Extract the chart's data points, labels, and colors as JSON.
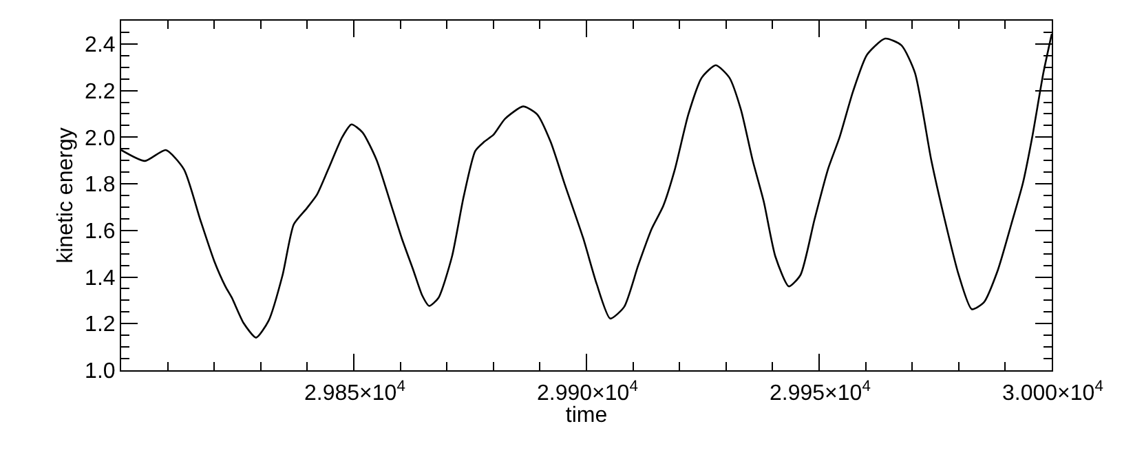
{
  "chart_data": {
    "type": "line",
    "xlabel": "time",
    "ylabel": "kinetic energy",
    "x": [
      29800,
      29805.1,
      29809.6,
      29813.5,
      29817,
      29820,
      29822.4,
      29823.8,
      29826.3,
      29829,
      29831.7,
      29834.7,
      29837.1,
      29839.9,
      29842.1,
      29844.5,
      29847.5,
      29849.5,
      29851.9,
      29854.9,
      29857.8,
      29860.3,
      29862.8,
      29864.7,
      29866.2,
      29868.2,
      29871.1,
      29873.6,
      29876.1,
      29878,
      29880,
      29882.5,
      29886.4,
      29889.4,
      29892.3,
      29895.3,
      29899.3,
      29902.2,
      29905.1,
      29908.1,
      29911.1,
      29914,
      29916.5,
      29919,
      29921.9,
      29924.8,
      29927.8,
      29930.7,
      29933.2,
      29935.7,
      29938.1,
      29940.6,
      29943.5,
      29946,
      29949,
      29951.9,
      29954.4,
      29957.3,
      29960.3,
      29964.2,
      29967.7,
      29970.6,
      29974.1,
      29977,
      29980,
      29982.8,
      29985.4,
      29988.4,
      29991.3,
      29993.8,
      29995.8,
      29998.2,
      30000
    ],
    "series": [
      {
        "color": "#000000",
        "values": [
          1.945,
          1.898,
          1.945,
          1.862,
          1.646,
          1.469,
          1.36,
          1.311,
          1.203,
          1.14,
          1.213,
          1.409,
          1.626,
          1.695,
          1.754,
          1.862,
          2.0,
          2.055,
          2.02,
          1.902,
          1.724,
          1.567,
          1.429,
          1.321,
          1.276,
          1.311,
          1.488,
          1.744,
          1.941,
          1.98,
          2.01,
          2.079,
          2.132,
          2.098,
          1.98,
          1.8,
          1.567,
          1.37,
          1.222,
          1.272,
          1.449,
          1.606,
          1.705,
          1.862,
          2.098,
          2.256,
          2.309,
          2.256,
          2.118,
          1.902,
          1.724,
          1.488,
          1.36,
          1.409,
          1.646,
          1.862,
          2.0,
          2.197,
          2.354,
          2.423,
          2.394,
          2.276,
          1.902,
          1.646,
          1.409,
          1.262,
          1.291,
          1.429,
          1.626,
          1.803,
          2.0,
          2.276,
          2.443
        ]
      }
    ],
    "xlim": [
      29800,
      30000
    ],
    "xticks": [
      {
        "value": 29810,
        "label": null
      },
      {
        "value": 29820,
        "label": null
      },
      {
        "value": 29830,
        "label": null
      },
      {
        "value": 29840,
        "label": null
      },
      {
        "value": 29850,
        "label": "2.985×10$^{4}$"
      },
      {
        "value": 29860,
        "label": null
      },
      {
        "value": 29870,
        "label": null
      },
      {
        "value": 29880,
        "label": null
      },
      {
        "value": 29890,
        "label": null
      },
      {
        "value": 29900,
        "label": "2.990×10$^{4}$"
      },
      {
        "value": 29910,
        "label": null
      },
      {
        "value": 29920,
        "label": null
      },
      {
        "value": 29930,
        "label": null
      },
      {
        "value": 29940,
        "label": null
      },
      {
        "value": 29950,
        "label": "2.995×10$^{4}$"
      },
      {
        "value": 29960,
        "label": null
      },
      {
        "value": 29970,
        "label": null
      },
      {
        "value": 29980,
        "label": null
      },
      {
        "value": 29990,
        "label": null
      },
      {
        "value": 30000,
        "label": "3.000×10$^{4}$"
      }
    ],
    "ylim": [
      1.0,
      2.5
    ],
    "yticks": [
      {
        "value": 1.0,
        "label": "1.0"
      },
      {
        "value": 1.05,
        "label": null
      },
      {
        "value": 1.1,
        "label": null
      },
      {
        "value": 1.15,
        "label": null
      },
      {
        "value": 1.2,
        "label": "1.2"
      },
      {
        "value": 1.25,
        "label": null
      },
      {
        "value": 1.3,
        "label": null
      },
      {
        "value": 1.35,
        "label": null
      },
      {
        "value": 1.4,
        "label": "1.4"
      },
      {
        "value": 1.45,
        "label": null
      },
      {
        "value": 1.5,
        "label": null
      },
      {
        "value": 1.55,
        "label": null
      },
      {
        "value": 1.6,
        "label": "1.6"
      },
      {
        "value": 1.65,
        "label": null
      },
      {
        "value": 1.7,
        "label": null
      },
      {
        "value": 1.75,
        "label": null
      },
      {
        "value": 1.8,
        "label": "1.8"
      },
      {
        "value": 1.85,
        "label": null
      },
      {
        "value": 1.9,
        "label": null
      },
      {
        "value": 1.95,
        "label": null
      },
      {
        "value": 2.0,
        "label": "2.0"
      },
      {
        "value": 2.05,
        "label": null
      },
      {
        "value": 2.1,
        "label": null
      },
      {
        "value": 2.15,
        "label": null
      },
      {
        "value": 2.2,
        "label": "2.2"
      },
      {
        "value": 2.25,
        "label": null
      },
      {
        "value": 2.3,
        "label": null
      },
      {
        "value": 2.35,
        "label": null
      },
      {
        "value": 2.4,
        "label": "2.4"
      },
      {
        "value": 2.45,
        "label": null
      }
    ],
    "marker": "none",
    "line_style": "solid"
  }
}
